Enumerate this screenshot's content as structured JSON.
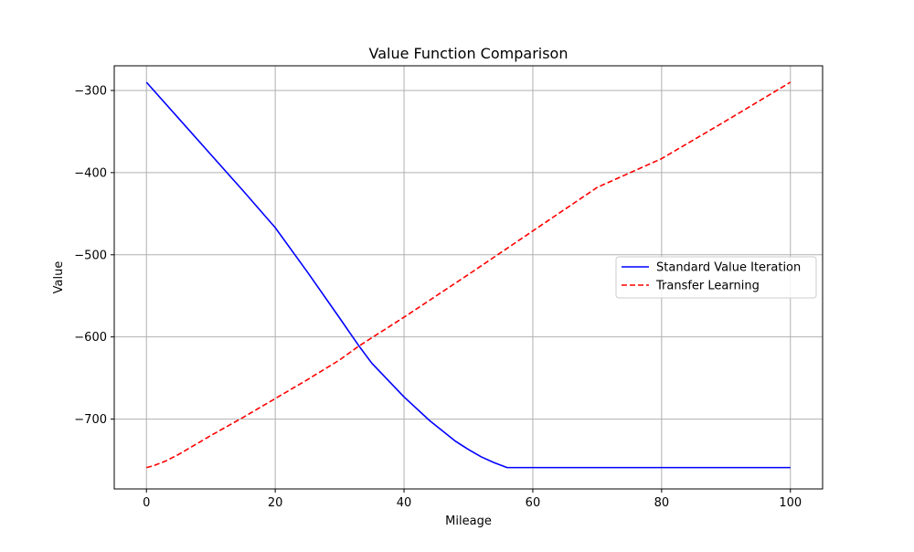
{
  "chart_data": {
    "type": "line",
    "title": "Value Function Comparison",
    "xlabel": "Mileage",
    "ylabel": "Value",
    "xlim": [
      -5,
      105
    ],
    "ylim": [
      -785,
      -270
    ],
    "xticks": [
      0,
      20,
      40,
      60,
      80,
      100
    ],
    "yticks": [
      -700,
      -600,
      -500,
      -400,
      -300
    ],
    "ytick_labels": [
      "−700",
      "−600",
      "−500",
      "−400",
      "−300"
    ],
    "xtick_labels": [
      "0",
      "20",
      "40",
      "60",
      "80",
      "100"
    ],
    "grid": true,
    "legend_position": "center-right",
    "series": [
      {
        "name": "Standard Value Iteration",
        "color": "#0000ff",
        "style": "solid",
        "x": [
          0,
          5,
          10,
          15,
          20,
          25,
          30,
          33,
          35,
          40,
          44,
          48,
          50,
          52,
          54,
          56,
          60,
          70,
          80,
          90,
          100
        ],
        "y": [
          -290,
          -334,
          -378,
          -422,
          -467,
          -521,
          -577,
          -611,
          -632,
          -673,
          -702,
          -727,
          -737,
          -746,
          -753,
          -759,
          -759,
          -759,
          -759,
          -759,
          -759
        ]
      },
      {
        "name": "Transfer Learning",
        "color": "#ff0000",
        "style": "dashed",
        "x": [
          0,
          1,
          3,
          5,
          10,
          15,
          20,
          25,
          30,
          33,
          40,
          50,
          60,
          70,
          80,
          90,
          100
        ],
        "y": [
          -759,
          -757,
          -751,
          -743,
          -720,
          -698,
          -675,
          -652,
          -628,
          -611,
          -576,
          -524,
          -471,
          -418,
          -383,
          -337,
          -290
        ]
      }
    ]
  }
}
